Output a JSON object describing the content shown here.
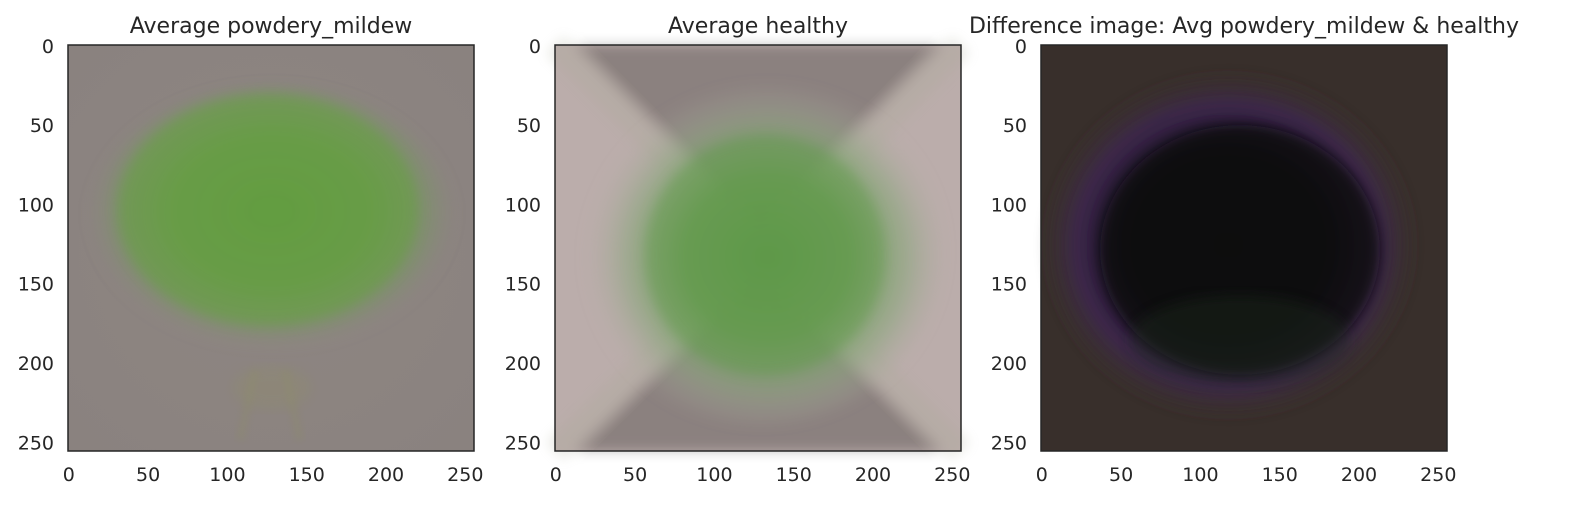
{
  "figure": {
    "titles": [
      "Average powdery_mildew",
      "Average healthy",
      "Difference image: Avg powdery_mildew & healthy"
    ]
  },
  "chart_data": [
    {
      "type": "heatmap",
      "title": "Average powdery_mildew",
      "image": "average RGB leaf image, ~256x256 px",
      "colors": {
        "background": "#8c8480",
        "leaf": "#6a9a4c"
      },
      "xlim": [
        0,
        255
      ],
      "ylim": [
        255,
        0
      ],
      "xticks": [
        0,
        50,
        100,
        150,
        200,
        250
      ],
      "yticks": [
        0,
        50,
        100,
        150,
        200,
        250
      ],
      "xtick_labels": [
        "0",
        "50",
        "100",
        "150",
        "200",
        "250"
      ],
      "ytick_labels": [
        "0",
        "50",
        "100",
        "150",
        "200",
        "250"
      ],
      "xlabel": "",
      "ylabel": "",
      "grid": false
    },
    {
      "type": "heatmap",
      "title": "Average healthy",
      "image": "average RGB leaf image, ~256x256 px",
      "colors": {
        "background": "#bcaeac",
        "leaf": "#6a9a52"
      },
      "xlim": [
        0,
        255
      ],
      "ylim": [
        255,
        0
      ],
      "xticks": [
        0,
        50,
        100,
        150,
        200,
        250
      ],
      "yticks": [
        0,
        50,
        100,
        150,
        200,
        250
      ],
      "xtick_labels": [
        "0",
        "50",
        "100",
        "150",
        "200",
        "250"
      ],
      "ytick_labels": [
        "0",
        "50",
        "100",
        "150",
        "200",
        "250"
      ],
      "xlabel": "",
      "ylabel": "",
      "grid": false
    },
    {
      "type": "heatmap",
      "title": "Difference image: Avg powdery_mildew & healthy",
      "image": "difference of the two average images, ~256x256 px",
      "colors": {
        "background": "#3a302c",
        "center": "#0c0a10",
        "rim": "#3e2650"
      },
      "xlim": [
        0,
        255
      ],
      "ylim": [
        255,
        0
      ],
      "xticks": [
        0,
        50,
        100,
        150,
        200,
        250
      ],
      "yticks": [
        0,
        50,
        100,
        150,
        200,
        250
      ],
      "xtick_labels": [
        "0",
        "50",
        "100",
        "150",
        "200",
        "250"
      ],
      "ytick_labels": [
        "0",
        "50",
        "100",
        "150",
        "200",
        "250"
      ],
      "xlabel": "",
      "ylabel": "",
      "grid": false
    }
  ]
}
